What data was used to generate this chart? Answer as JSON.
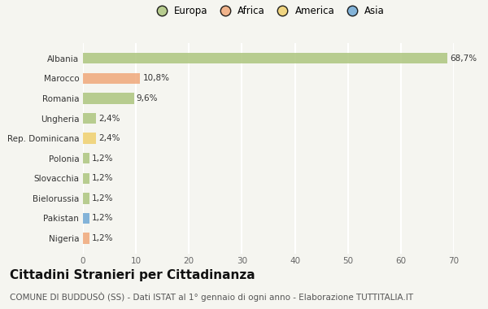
{
  "countries": [
    "Albania",
    "Marocco",
    "Romania",
    "Ungheria",
    "Rep. Dominicana",
    "Polonia",
    "Slovacchia",
    "Bielorussia",
    "Pakistan",
    "Nigeria"
  ],
  "values": [
    68.7,
    10.8,
    9.6,
    2.4,
    2.4,
    1.2,
    1.2,
    1.2,
    1.2,
    1.2
  ],
  "labels": [
    "68,7%",
    "10,8%",
    "9,6%",
    "2,4%",
    "2,4%",
    "1,2%",
    "1,2%",
    "1,2%",
    "1,2%",
    "1,2%"
  ],
  "colors": [
    "#adc57e",
    "#f0a87a",
    "#adc57e",
    "#adc57e",
    "#f0d06e",
    "#adc57e",
    "#adc57e",
    "#adc57e",
    "#6fa8d4",
    "#f0a87a"
  ],
  "legend_labels": [
    "Europa",
    "Africa",
    "America",
    "Asia"
  ],
  "legend_colors": [
    "#adc57e",
    "#f0a87a",
    "#f0d06e",
    "#6fa8d4"
  ],
  "xlim": [
    0,
    70
  ],
  "xticks": [
    0,
    10,
    20,
    30,
    40,
    50,
    60,
    70
  ],
  "title": "Cittadini Stranieri per Cittadinanza",
  "subtitle": "COMUNE DI BUDDUSÒ (SS) - Dati ISTAT al 1° gennaio di ogni anno - Elaborazione TUTTITALIA.IT",
  "background_color": "#f5f5f0",
  "bar_height": 0.55,
  "grid_color": "#ffffff",
  "title_fontsize": 11,
  "subtitle_fontsize": 7.5,
  "label_fontsize": 7.5,
  "tick_fontsize": 7.5,
  "legend_fontsize": 8.5
}
